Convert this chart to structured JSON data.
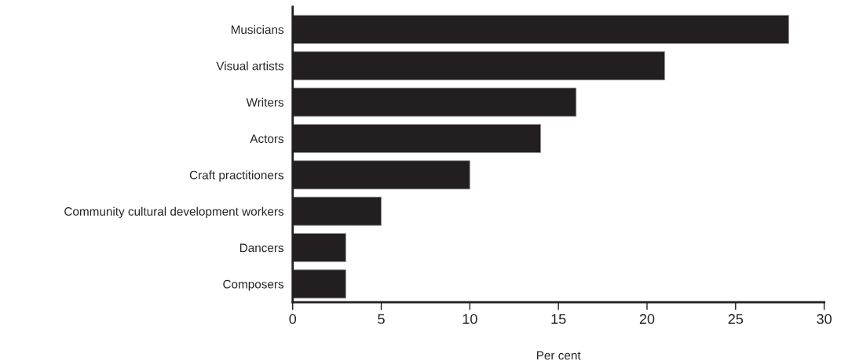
{
  "chart_data": {
    "type": "bar",
    "orientation": "horizontal",
    "xlabel": "Per cent",
    "categories": [
      "Musicians",
      "Visual artists",
      "Writers",
      "Actors",
      "Craft practitioners",
      "Community cultural development workers",
      "Dancers",
      "Composers"
    ],
    "values": [
      28,
      21,
      16,
      14,
      10,
      5,
      3,
      3
    ],
    "color": "#231f20",
    "xlim": [
      0,
      30
    ],
    "xticks": [
      0,
      5,
      10,
      15,
      20,
      25,
      30
    ],
    "grid": false,
    "legend": false
  }
}
